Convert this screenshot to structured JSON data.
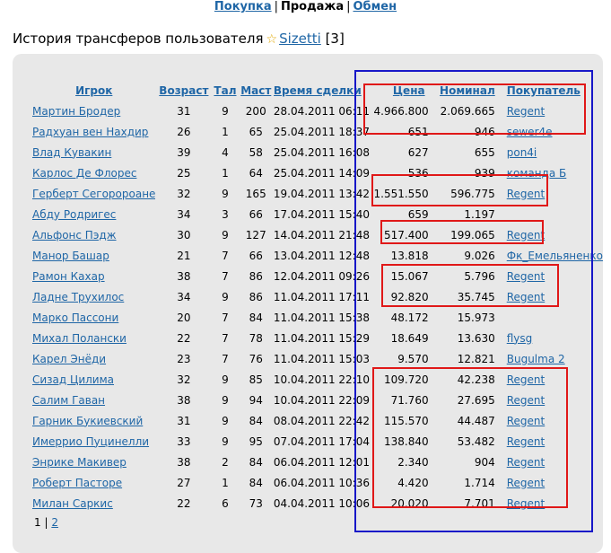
{
  "nav": {
    "buy": "Покупка",
    "sell": "Продажа",
    "exchange": "Обмен",
    "sep": "|"
  },
  "title": {
    "prefix": "История трансферов пользователя",
    "user": "Sizetti",
    "count": "[3]"
  },
  "columns": [
    "Игрок",
    "Возраст",
    "Тал",
    "Маст",
    "Время сделки",
    "Цена",
    "Номинал",
    "Покупатель"
  ],
  "rows": [
    {
      "player": "Мартин Бродер",
      "age": "31",
      "tal": "9",
      "mast": "200",
      "time": "28.04.2011 06:11",
      "price": "4.966.800",
      "nominal": "2.069.665",
      "buyer": "Regent"
    },
    {
      "player": "Радхуан вен Нахдир",
      "age": "26",
      "tal": "1",
      "mast": "65",
      "time": "25.04.2011 18:37",
      "price": "651",
      "nominal": "946",
      "buyer": "sewer4e"
    },
    {
      "player": "Влад Кувакин",
      "age": "39",
      "tal": "4",
      "mast": "58",
      "time": "25.04.2011 16:08",
      "price": "627",
      "nominal": "655",
      "buyer": "pon4i"
    },
    {
      "player": "Карлос Де Флорес",
      "age": "25",
      "tal": "1",
      "mast": "64",
      "time": "25.04.2011 14:09",
      "price": "536",
      "nominal": "939",
      "buyer": "команда Б"
    },
    {
      "player": "Герберт Сегоророане",
      "age": "32",
      "tal": "9",
      "mast": "165",
      "time": "19.04.2011 13:42",
      "price": "1.551.550",
      "nominal": "596.775",
      "buyer": "Regent"
    },
    {
      "player": "Абду Родригес",
      "age": "34",
      "tal": "3",
      "mast": "66",
      "time": "17.04.2011 15:40",
      "price": "659",
      "nominal": "1.197",
      "buyer": ""
    },
    {
      "player": "Альфонс Пэдж",
      "age": "30",
      "tal": "9",
      "mast": "127",
      "time": "14.04.2011 21:48",
      "price": "517.400",
      "nominal": "199.065",
      "buyer": "Regent"
    },
    {
      "player": "Манор Башар",
      "age": "21",
      "tal": "7",
      "mast": "66",
      "time": "13.04.2011 12:48",
      "price": "13.818",
      "nominal": "9.026",
      "buyer": "Фк_Емельяненко"
    },
    {
      "player": "Рамон Кахар",
      "age": "38",
      "tal": "7",
      "mast": "86",
      "time": "12.04.2011 09:26",
      "price": "15.067",
      "nominal": "5.796",
      "buyer": "Regent"
    },
    {
      "player": "Ладне Трухилос",
      "age": "34",
      "tal": "9",
      "mast": "86",
      "time": "11.04.2011 17:11",
      "price": "92.820",
      "nominal": "35.745",
      "buyer": "Regent"
    },
    {
      "player": "Марко Пассони",
      "age": "20",
      "tal": "7",
      "mast": "84",
      "time": "11.04.2011 15:38",
      "price": "48.172",
      "nominal": "15.973",
      "buyer": ""
    },
    {
      "player": "Михал Полански",
      "age": "22",
      "tal": "7",
      "mast": "78",
      "time": "11.04.2011 15:29",
      "price": "18.649",
      "nominal": "13.630",
      "buyer": "flysg"
    },
    {
      "player": "Карел Энёди",
      "age": "23",
      "tal": "7",
      "mast": "76",
      "time": "11.04.2011 15:03",
      "price": "9.570",
      "nominal": "12.821",
      "buyer": "Bugulma 2"
    },
    {
      "player": "Сизад Цилима",
      "age": "32",
      "tal": "9",
      "mast": "85",
      "time": "10.04.2011 22:10",
      "price": "109.720",
      "nominal": "42.238",
      "buyer": "Regent"
    },
    {
      "player": "Салим Гаван",
      "age": "38",
      "tal": "9",
      "mast": "94",
      "time": "10.04.2011 22:09",
      "price": "71.760",
      "nominal": "27.695",
      "buyer": "Regent"
    },
    {
      "player": "Гарник Букиевский",
      "age": "31",
      "tal": "9",
      "mast": "84",
      "time": "08.04.2011 22:42",
      "price": "115.570",
      "nominal": "44.487",
      "buyer": "Regent"
    },
    {
      "player": "Имеррио Пуцинелли",
      "age": "33",
      "tal": "9",
      "mast": "95",
      "time": "07.04.2011 17:04",
      "price": "138.840",
      "nominal": "53.482",
      "buyer": "Regent"
    },
    {
      "player": "Энрике Макивер",
      "age": "38",
      "tal": "2",
      "mast": "84",
      "time": "06.04.2011 12:01",
      "price": "2.340",
      "nominal": "904",
      "buyer": "Regent"
    },
    {
      "player": "Роберт Пасторе",
      "age": "27",
      "tal": "1",
      "mast": "84",
      "time": "06.04.2011 10:36",
      "price": "4.420",
      "nominal": "1.714",
      "buyer": "Regent"
    },
    {
      "player": "Милан Саркис",
      "age": "22",
      "tal": "6",
      "mast": "73",
      "time": "04.04.2011 10:06",
      "price": "20.020",
      "nominal": "7.701",
      "buyer": "Regent"
    }
  ],
  "pager": {
    "current": "1",
    "sep": "|",
    "next": "2"
  },
  "colors": {
    "link": "#1f66a6",
    "panel": "#e8e8e8",
    "blue_box": "#1717c8",
    "red_box": "#e01818",
    "star": "#e0a800"
  },
  "icons": {
    "favorite": "star-icon"
  }
}
